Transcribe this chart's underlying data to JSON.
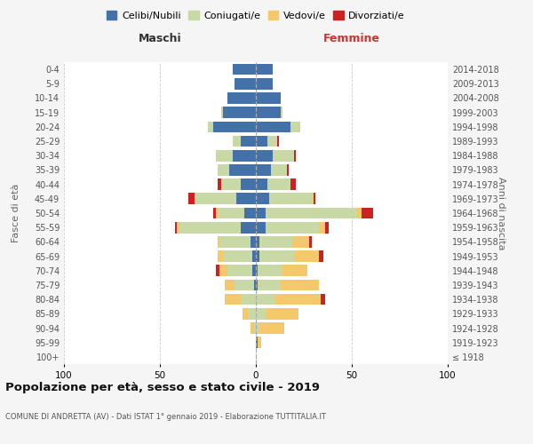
{
  "age_groups": [
    "100+",
    "95-99",
    "90-94",
    "85-89",
    "80-84",
    "75-79",
    "70-74",
    "65-69",
    "60-64",
    "55-59",
    "50-54",
    "45-49",
    "40-44",
    "35-39",
    "30-34",
    "25-29",
    "20-24",
    "15-19",
    "10-14",
    "5-9",
    "0-4"
  ],
  "birth_years": [
    "≤ 1918",
    "1919-1923",
    "1924-1928",
    "1929-1933",
    "1934-1938",
    "1939-1943",
    "1944-1948",
    "1949-1953",
    "1954-1958",
    "1959-1963",
    "1964-1968",
    "1969-1973",
    "1974-1978",
    "1979-1983",
    "1984-1988",
    "1989-1993",
    "1994-1998",
    "1999-2003",
    "2004-2008",
    "2009-2013",
    "2014-2018"
  ],
  "colors": {
    "celibe": "#4472a8",
    "coniugato": "#c8d9a5",
    "vedovo": "#f5c96a",
    "divorziato": "#cc2222"
  },
  "males": {
    "celibe": [
      0,
      0,
      0,
      0,
      0,
      1,
      2,
      2,
      3,
      8,
      6,
      10,
      8,
      14,
      12,
      8,
      22,
      17,
      15,
      11,
      12
    ],
    "coniugato": [
      0,
      0,
      1,
      4,
      8,
      10,
      13,
      15,
      16,
      32,
      14,
      22,
      10,
      6,
      9,
      4,
      3,
      1,
      0,
      0,
      0
    ],
    "vedovo": [
      0,
      0,
      2,
      3,
      8,
      5,
      4,
      3,
      1,
      1,
      1,
      0,
      0,
      0,
      0,
      0,
      0,
      0,
      0,
      0,
      0
    ],
    "divorziato": [
      0,
      0,
      0,
      0,
      0,
      0,
      2,
      0,
      0,
      1,
      1,
      3,
      2,
      0,
      0,
      0,
      0,
      0,
      0,
      0,
      0
    ]
  },
  "females": {
    "nubile": [
      0,
      1,
      0,
      0,
      0,
      1,
      1,
      2,
      2,
      5,
      5,
      7,
      6,
      8,
      9,
      6,
      18,
      13,
      13,
      9,
      9
    ],
    "coniugata": [
      0,
      0,
      2,
      5,
      10,
      12,
      13,
      18,
      17,
      28,
      48,
      22,
      12,
      8,
      11,
      5,
      5,
      1,
      0,
      0,
      0
    ],
    "vedova": [
      0,
      2,
      13,
      17,
      24,
      20,
      13,
      13,
      9,
      3,
      2,
      1,
      0,
      0,
      0,
      0,
      0,
      0,
      0,
      0,
      0
    ],
    "divorziata": [
      0,
      0,
      0,
      0,
      2,
      0,
      0,
      2,
      1,
      2,
      6,
      1,
      3,
      1,
      1,
      1,
      0,
      0,
      0,
      0,
      0
    ]
  },
  "title": "Popolazione per età, sesso e stato civile - 2019",
  "subtitle": "COMUNE DI ANDRETTA (AV) - Dati ISTAT 1° gennaio 2019 - Elaborazione TUTTITALIA.IT",
  "xlabel_left": "Maschi",
  "xlabel_right": "Femmine",
  "ylabel_left": "Fasce di età",
  "ylabel_right": "Anni di nascita",
  "xlim": 100,
  "legend_labels": [
    "Celibi/Nubili",
    "Coniugati/e",
    "Vedovi/e",
    "Divorziati/e"
  ],
  "bg_color": "#f5f5f5",
  "plot_bg_color": "#ffffff",
  "grid_color": "#cccccc"
}
